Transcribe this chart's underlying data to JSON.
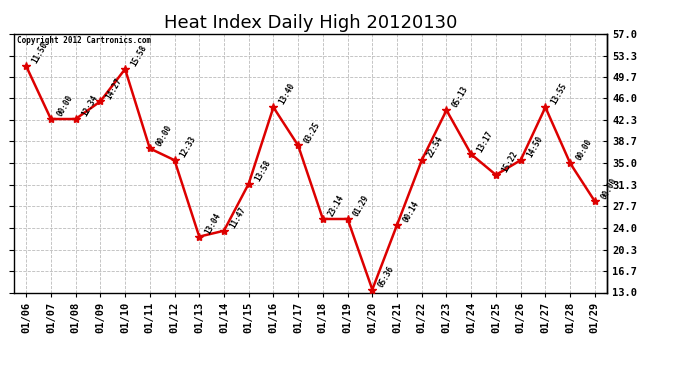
{
  "title": "Heat Index Daily High 20120130",
  "copyright": "Copyright 2012 Cartronics.com",
  "x_labels": [
    "01/06",
    "01/07",
    "01/08",
    "01/09",
    "01/10",
    "01/11",
    "01/12",
    "01/13",
    "01/14",
    "01/15",
    "01/16",
    "01/17",
    "01/18",
    "01/19",
    "01/20",
    "01/21",
    "01/22",
    "01/23",
    "01/24",
    "01/25",
    "01/26",
    "01/27",
    "01/28",
    "01/29"
  ],
  "y_values": [
    51.5,
    42.5,
    42.5,
    45.5,
    51.0,
    37.5,
    35.5,
    22.5,
    23.5,
    31.5,
    44.5,
    38.0,
    25.5,
    25.5,
    13.5,
    24.5,
    35.5,
    44.0,
    36.5,
    33.0,
    35.5,
    44.5,
    35.0,
    28.5
  ],
  "point_labels": [
    "11:50",
    "00:00",
    "12:34",
    "14:27",
    "15:58",
    "00:00",
    "12:33",
    "13:04",
    "11:47",
    "13:58",
    "13:40",
    "03:25",
    "23:14",
    "01:29",
    "05:36",
    "00:14",
    "22:54",
    "05:13",
    "13:17",
    "15:22",
    "14:50",
    "13:55",
    "00:00",
    "00:00"
  ],
  "line_color": "#dd0000",
  "marker_color": "#dd0000",
  "bg_color": "#ffffff",
  "plot_bg_color": "#ffffff",
  "grid_color": "#bbbbbb",
  "yticks": [
    13.0,
    16.7,
    20.3,
    24.0,
    27.7,
    31.3,
    35.0,
    38.7,
    42.3,
    46.0,
    49.7,
    53.3,
    57.0
  ],
  "ylim": [
    13.0,
    57.0
  ],
  "title_fontsize": 13,
  "tick_fontsize": 7.5
}
